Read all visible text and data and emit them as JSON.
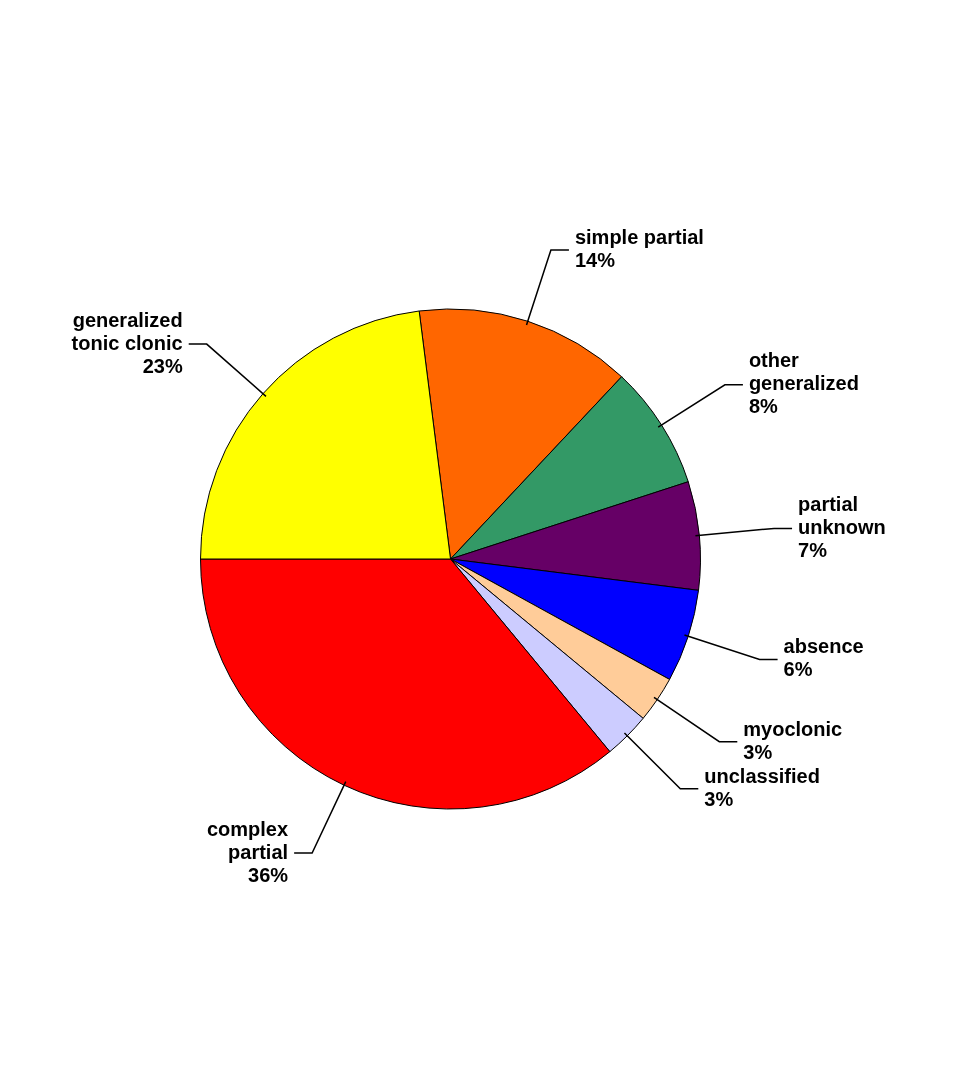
{
  "chart_data": {
    "type": "pie",
    "categories": [
      "simple partial",
      "other generalized",
      "partial unknown",
      "absence",
      "myoclonic",
      "unclassified",
      "complex partial",
      "generalized tonic clonic"
    ],
    "values": [
      14,
      8,
      7,
      6,
      3,
      3,
      36,
      23
    ],
    "value_labels": [
      "14%",
      "8%",
      "7%",
      "6%",
      "3%",
      "3%",
      "36%",
      "23%"
    ],
    "colors": [
      "#ff6600",
      "#339966",
      "#660066",
      "#0000ff",
      "#ffcc99",
      "#ccccff",
      "#ff0000",
      "#ffff00"
    ],
    "legend": false
  }
}
